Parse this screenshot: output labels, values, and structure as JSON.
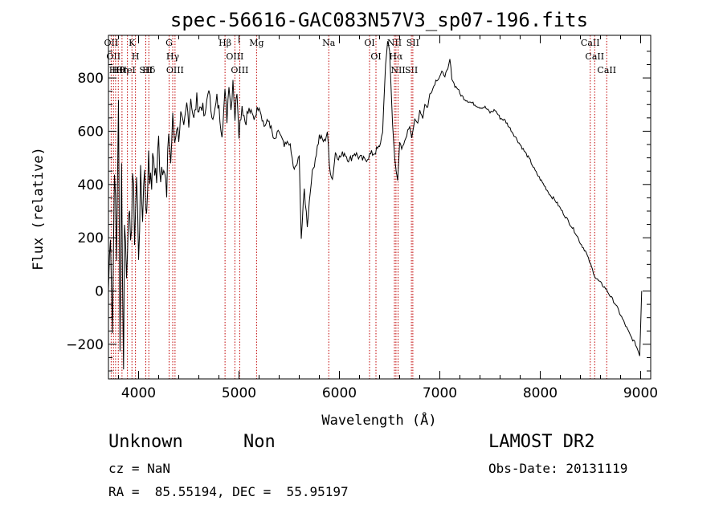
{
  "chart_data": {
    "type": "line",
    "title": "spec-56616-GAC083N57V3_sp07-196.fits",
    "xlabel": "Wavelength (Å)",
    "ylabel": "Flux (relative)",
    "xlim": [
      3700,
      9100
    ],
    "ylim": [
      -330,
      960
    ],
    "xticks": [
      4000,
      5000,
      6000,
      7000,
      8000,
      9000
    ],
    "yticks": [
      -200,
      0,
      200,
      400,
      600,
      800
    ],
    "grid": false,
    "series": [
      {
        "points": [
          [
            3700,
            0
          ],
          [
            3720,
            250
          ],
          [
            3740,
            -150
          ],
          [
            3760,
            500
          ],
          [
            3780,
            100
          ],
          [
            3800,
            750
          ],
          [
            3815,
            -250
          ],
          [
            3830,
            480
          ],
          [
            3850,
            -320
          ],
          [
            3860,
            300
          ],
          [
            3880,
            50
          ],
          [
            3900,
            350
          ],
          [
            3920,
            120
          ],
          [
            3940,
            450
          ],
          [
            3960,
            220
          ],
          [
            3980,
            420
          ],
          [
            4000,
            150
          ],
          [
            4020,
            400
          ],
          [
            4040,
            300
          ],
          [
            4060,
            480
          ],
          [
            4080,
            250
          ],
          [
            4100,
            550
          ],
          [
            4120,
            380
          ],
          [
            4150,
            500
          ],
          [
            4180,
            420
          ],
          [
            4200,
            560
          ],
          [
            4220,
            450
          ],
          [
            4250,
            520
          ],
          [
            4280,
            330
          ],
          [
            4300,
            600
          ],
          [
            4320,
            480
          ],
          [
            4340,
            650
          ],
          [
            4360,
            560
          ],
          [
            4380,
            620
          ],
          [
            4400,
            580
          ],
          [
            4420,
            660
          ],
          [
            4450,
            600
          ],
          [
            4480,
            700
          ],
          [
            4500,
            640
          ],
          [
            4520,
            730
          ],
          [
            4550,
            640
          ],
          [
            4580,
            720
          ],
          [
            4600,
            680
          ],
          [
            4630,
            700
          ],
          [
            4660,
            640
          ],
          [
            4690,
            760
          ],
          [
            4720,
            690
          ],
          [
            4750,
            650
          ],
          [
            4780,
            720
          ],
          [
            4800,
            680
          ],
          [
            4830,
            600
          ],
          [
            4860,
            740
          ],
          [
            4880,
            650
          ],
          [
            4900,
            790
          ],
          [
            4920,
            680
          ],
          [
            4940,
            800
          ],
          [
            4960,
            650
          ],
          [
            4980,
            760
          ],
          [
            5000,
            600
          ],
          [
            5030,
            700
          ],
          [
            5060,
            640
          ],
          [
            5100,
            680
          ],
          [
            5150,
            650
          ],
          [
            5200,
            700
          ],
          [
            5250,
            620
          ],
          [
            5300,
            640
          ],
          [
            5350,
            560
          ],
          [
            5400,
            600
          ],
          [
            5450,
            540
          ],
          [
            5500,
            560
          ],
          [
            5550,
            450
          ],
          [
            5600,
            500
          ],
          [
            5620,
            200
          ],
          [
            5650,
            380
          ],
          [
            5680,
            250
          ],
          [
            5720,
            420
          ],
          [
            5760,
            500
          ],
          [
            5800,
            580
          ],
          [
            5850,
            560
          ],
          [
            5880,
            600
          ],
          [
            5900,
            470
          ],
          [
            5930,
            420
          ],
          [
            5960,
            520
          ],
          [
            6000,
            500
          ],
          [
            6050,
            520
          ],
          [
            6100,
            490
          ],
          [
            6150,
            520
          ],
          [
            6200,
            500
          ],
          [
            6250,
            490
          ],
          [
            6300,
            510
          ],
          [
            6350,
            520
          ],
          [
            6400,
            540
          ],
          [
            6430,
            600
          ],
          [
            6460,
            850
          ],
          [
            6480,
            940
          ],
          [
            6500,
            900
          ],
          [
            6530,
            620
          ],
          [
            6550,
            500
          ],
          [
            6565,
            450
          ],
          [
            6580,
            420
          ],
          [
            6600,
            560
          ],
          [
            6620,
            530
          ],
          [
            6650,
            560
          ],
          [
            6680,
            600
          ],
          [
            6700,
            620
          ],
          [
            6720,
            580
          ],
          [
            6750,
            640
          ],
          [
            6780,
            630
          ],
          [
            6800,
            680
          ],
          [
            6830,
            650
          ],
          [
            6850,
            700
          ],
          [
            6880,
            690
          ],
          [
            6900,
            740
          ],
          [
            6930,
            760
          ],
          [
            6960,
            790
          ],
          [
            6990,
            800
          ],
          [
            7020,
            820
          ],
          [
            7050,
            810
          ],
          [
            7080,
            830
          ],
          [
            7100,
            870
          ],
          [
            7120,
            800
          ],
          [
            7150,
            770
          ],
          [
            7180,
            760
          ],
          [
            7200,
            740
          ],
          [
            7250,
            720
          ],
          [
            7300,
            710
          ],
          [
            7350,
            700
          ],
          [
            7400,
            690
          ],
          [
            7450,
            690
          ],
          [
            7500,
            670
          ],
          [
            7550,
            680
          ],
          [
            7600,
            650
          ],
          [
            7650,
            640
          ],
          [
            7700,
            610
          ],
          [
            7750,
            580
          ],
          [
            7800,
            550
          ],
          [
            7850,
            520
          ],
          [
            7900,
            490
          ],
          [
            7950,
            450
          ],
          [
            8000,
            420
          ],
          [
            8050,
            390
          ],
          [
            8100,
            360
          ],
          [
            8150,
            340
          ],
          [
            8200,
            310
          ],
          [
            8250,
            280
          ],
          [
            8300,
            250
          ],
          [
            8350,
            220
          ],
          [
            8400,
            180
          ],
          [
            8450,
            150
          ],
          [
            8500,
            100
          ],
          [
            8550,
            50
          ],
          [
            8600,
            30
          ],
          [
            8650,
            10
          ],
          [
            8700,
            -20
          ],
          [
            8750,
            -50
          ],
          [
            8800,
            -90
          ],
          [
            8850,
            -130
          ],
          [
            8900,
            -170
          ],
          [
            8950,
            -200
          ],
          [
            8990,
            -240
          ],
          [
            9000,
            -130
          ],
          [
            9010,
            0
          ]
        ]
      }
    ],
    "lines": [
      {
        "wl": 3727,
        "label": "OII"
      },
      {
        "wl": 3750,
        "label": "OII"
      },
      {
        "wl": 3771,
        "label": "Hθ"
      },
      {
        "wl": 3798,
        "label": "Hθ"
      },
      {
        "wl": 3835,
        "label": "Hη"
      },
      {
        "wl": 3889,
        "label": "HeI"
      },
      {
        "wl": 3934,
        "label": "K"
      },
      {
        "wl": 3969,
        "label": "H"
      },
      {
        "wl": 4072,
        "label": "SII"
      },
      {
        "wl": 4102,
        "label": "Hδ"
      },
      {
        "wl": 4304,
        "label": "G"
      },
      {
        "wl": 4340,
        "label": "Hγ"
      },
      {
        "wl": 4363,
        "label": "OIII"
      },
      {
        "wl": 4861,
        "label": "Hβ"
      },
      {
        "wl": 4959,
        "label": "OIII"
      },
      {
        "wl": 5007,
        "label": "OIII"
      },
      {
        "wl": 5175,
        "label": "Mg"
      },
      {
        "wl": 5894,
        "label": "Na"
      },
      {
        "wl": 6300,
        "label": "OI"
      },
      {
        "wl": 6364,
        "label": "OI"
      },
      {
        "wl": 6548,
        "label": "NII"
      },
      {
        "wl": 6563,
        "label": "Hα"
      },
      {
        "wl": 6584,
        "label": "NII"
      },
      {
        "wl": 6717,
        "label": "SII"
      },
      {
        "wl": 6731,
        "label": "SII"
      },
      {
        "wl": 8498,
        "label": "CaII"
      },
      {
        "wl": 8542,
        "label": "CaII"
      },
      {
        "wl": 8662,
        "label": "CaII"
      }
    ]
  },
  "info": {
    "class": "Unknown",
    "subclass": "Non",
    "cz": "cz = NaN",
    "coords": "RA =  85.55194, DEC =  55.95197",
    "survey": "LAMOST DR2",
    "obs_date": "Obs-Date: 20131119"
  }
}
